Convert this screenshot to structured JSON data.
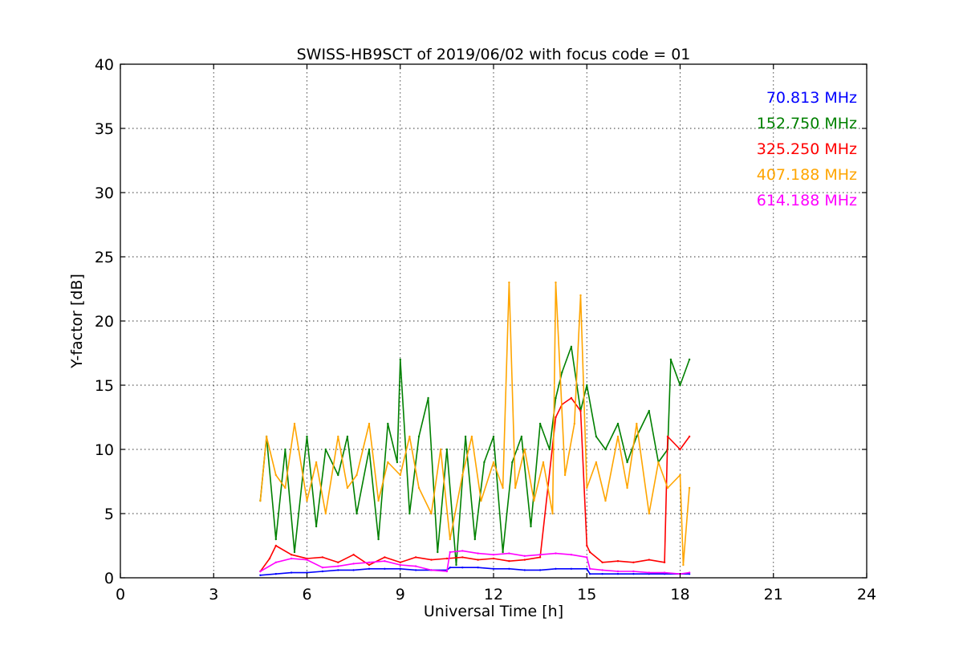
{
  "chart_data": {
    "type": "line",
    "title": "SWISS-HB9SCT of 2019/06/02 with focus code = 01",
    "xlabel": "Universal Time [h]",
    "ylabel": "Y-factor [dB]",
    "xlim": [
      0,
      24
    ],
    "ylim": [
      0,
      40
    ],
    "xticks": [
      0,
      3,
      6,
      9,
      12,
      15,
      18,
      21,
      24
    ],
    "yticks": [
      0,
      5,
      10,
      15,
      20,
      25,
      30,
      35,
      40
    ],
    "grid": true,
    "legend_placement": "top-right",
    "series": [
      {
        "name": "70.813 MHz",
        "color": "#0000ff",
        "x": [
          4.5,
          5.0,
          5.5,
          6.0,
          6.5,
          7.0,
          7.5,
          8.0,
          8.5,
          9.0,
          9.5,
          10.0,
          10.5,
          10.6,
          11.0,
          11.5,
          12.0,
          12.5,
          13.0,
          13.5,
          14.0,
          14.5,
          15.0,
          15.1,
          15.5,
          16.0,
          16.5,
          17.0,
          17.5,
          18.0,
          18.3
        ],
        "y": [
          0.2,
          0.3,
          0.4,
          0.4,
          0.5,
          0.6,
          0.6,
          0.7,
          0.7,
          0.7,
          0.6,
          0.6,
          0.6,
          0.8,
          0.8,
          0.8,
          0.7,
          0.7,
          0.6,
          0.6,
          0.7,
          0.7,
          0.7,
          0.3,
          0.3,
          0.3,
          0.3,
          0.3,
          0.3,
          0.3,
          0.3
        ]
      },
      {
        "name": "152.750 MHz",
        "color": "#008000",
        "x": [
          4.5,
          4.7,
          5.0,
          5.3,
          5.6,
          6.0,
          6.3,
          6.6,
          7.0,
          7.3,
          7.6,
          8.0,
          8.3,
          8.6,
          8.9,
          9.0,
          9.3,
          9.6,
          9.9,
          10.2,
          10.5,
          10.8,
          11.1,
          11.4,
          11.7,
          12.0,
          12.3,
          12.6,
          12.9,
          13.2,
          13.5,
          13.8,
          14.0,
          14.2,
          14.5,
          14.8,
          15.0,
          15.3,
          15.6,
          16.0,
          16.3,
          16.6,
          17.0,
          17.3,
          17.6,
          17.7,
          18.0,
          18.3
        ],
        "y": [
          6,
          11,
          3,
          10,
          2,
          11,
          4,
          10,
          8,
          11,
          5,
          10,
          3,
          12,
          9,
          17,
          5,
          11,
          14,
          2,
          10,
          1,
          11,
          3,
          9,
          11,
          2,
          9,
          11,
          4,
          12,
          10,
          14,
          16,
          18,
          13,
          15,
          11,
          10,
          12,
          9,
          11,
          13,
          9,
          10,
          17,
          15,
          17
        ]
      },
      {
        "name": "325.250 MHz",
        "color": "#ff0000",
        "x": [
          4.5,
          4.8,
          5.0,
          5.5,
          6.0,
          6.5,
          7.0,
          7.5,
          8.0,
          8.5,
          9.0,
          9.5,
          10.0,
          10.5,
          11.0,
          11.5,
          12.0,
          12.5,
          13.0,
          13.5,
          14.0,
          14.2,
          14.5,
          14.8,
          15.0,
          15.1,
          15.5,
          16.0,
          16.5,
          17.0,
          17.5,
          17.6,
          18.0,
          18.3
        ],
        "y": [
          0.5,
          1.5,
          2.5,
          1.8,
          1.5,
          1.6,
          1.2,
          1.8,
          1.0,
          1.6,
          1.2,
          1.6,
          1.4,
          1.5,
          1.6,
          1.4,
          1.5,
          1.3,
          1.4,
          1.6,
          12.5,
          13.5,
          14,
          13,
          2.5,
          2.0,
          1.2,
          1.3,
          1.2,
          1.4,
          1.2,
          11,
          10,
          11
        ]
      },
      {
        "name": "407.188 MHz",
        "color": "#ffa500",
        "x": [
          4.5,
          4.7,
          5.0,
          5.3,
          5.6,
          6.0,
          6.3,
          6.6,
          7.0,
          7.3,
          7.6,
          8.0,
          8.3,
          8.6,
          9.0,
          9.3,
          9.6,
          10.0,
          10.3,
          10.6,
          11.0,
          11.3,
          11.6,
          12.0,
          12.3,
          12.5,
          12.7,
          13.0,
          13.3,
          13.6,
          13.9,
          14.0,
          14.3,
          14.6,
          14.8,
          15.0,
          15.3,
          15.6,
          16.0,
          16.3,
          16.6,
          17.0,
          17.3,
          17.6,
          18.0,
          18.1,
          18.3
        ],
        "y": [
          6,
          11,
          8,
          7,
          12,
          6,
          9,
          5,
          11,
          7,
          8,
          12,
          6,
          9,
          8,
          11,
          7,
          5,
          10,
          3,
          8,
          11,
          6,
          9,
          7,
          23,
          7,
          10,
          6,
          9,
          5,
          23,
          8,
          12,
          22,
          7,
          9,
          6,
          11,
          7,
          12,
          5,
          9,
          7,
          8,
          1,
          7
        ]
      },
      {
        "name": "614.188 MHz",
        "color": "#ff00ff",
        "x": [
          4.5,
          5.0,
          5.5,
          6.0,
          6.5,
          7.0,
          7.5,
          8.0,
          8.5,
          9.0,
          9.5,
          10.0,
          10.5,
          10.6,
          11.0,
          11.5,
          12.0,
          12.5,
          13.0,
          13.5,
          14.0,
          14.5,
          15.0,
          15.1,
          15.5,
          16.0,
          16.5,
          17.0,
          17.5,
          18.0,
          18.3
        ],
        "y": [
          0.5,
          1.2,
          1.5,
          1.4,
          0.8,
          0.9,
          1.1,
          1.2,
          1.3,
          1.0,
          0.9,
          0.6,
          0.5,
          2.0,
          2.1,
          1.9,
          1.8,
          1.9,
          1.7,
          1.8,
          1.9,
          1.8,
          1.6,
          0.7,
          0.6,
          0.5,
          0.5,
          0.4,
          0.4,
          0.3,
          0.4
        ]
      }
    ]
  }
}
